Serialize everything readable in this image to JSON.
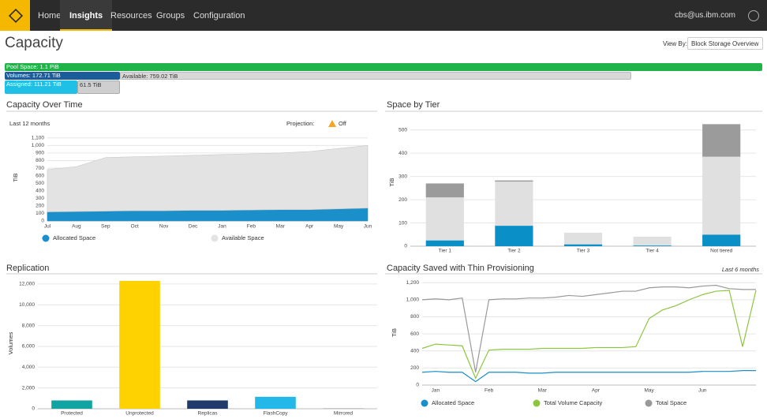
{
  "nav": {
    "items": [
      "Home",
      "Insights",
      "Resources",
      "Groups",
      "Configuration"
    ],
    "user": "cbs@us.ibm.com"
  },
  "page": {
    "title": "Capacity",
    "view_by_label": "View By:",
    "view_by_value": "Block Storage Overview"
  },
  "capacity_bars": {
    "pool": "Pool Space: 1.1 PiB",
    "volumes": "Volumes: 172.71 TiB",
    "available": "Available: 759.02 TiB",
    "assigned": "Assigned: 111.21 TiB",
    "unassigned": "61.5 TiB"
  },
  "chart_data": [
    {
      "type": "area",
      "title": "Capacity Over Time",
      "subtitle": "Last 12 months",
      "projection_label": "Projection:",
      "projection_value": "Off",
      "y_label": "TiB",
      "categories": [
        "Jul",
        "Aug",
        "Sep",
        "Oct",
        "Nov",
        "Dec",
        "Jan",
        "Feb",
        "Mar",
        "Apr",
        "May",
        "Jun"
      ],
      "series": [
        {
          "name": "Allocated Space",
          "color": "#1a8fc9",
          "values": [
            120,
            125,
            130,
            135,
            135,
            140,
            140,
            145,
            150,
            150,
            160,
            170
          ]
        },
        {
          "name": "Available Space",
          "color": "#e3e3e3",
          "values": [
            560,
            595,
            710,
            715,
            725,
            730,
            740,
            745,
            750,
            770,
            800,
            830
          ]
        }
      ],
      "stacked": true,
      "ylim": [
        0,
        1150
      ],
      "yticks": [
        0,
        100,
        200,
        300,
        400,
        500,
        600,
        700,
        800,
        900,
        {
          "value": 1000,
          "label": "1,000"
        },
        {
          "value": 1100,
          "label": "1,100"
        }
      ],
      "grid": true
    },
    {
      "type": "bar",
      "title": "Space by Tier",
      "y_label": "TiB",
      "stacked": true,
      "categories": [
        "Tier 1",
        "Tier 2",
        "Tier 3",
        "Tier 4",
        "Not tiered"
      ],
      "series": [
        {
          "color": "#0a8fc7",
          "values": [
            25,
            88,
            8,
            3,
            50
          ]
        },
        {
          "color": "#e0e0e0",
          "values": [
            185,
            190,
            50,
            38,
            335
          ]
        },
        {
          "color": "#9b9b9b",
          "values": [
            60,
            5,
            0,
            0,
            140
          ]
        }
      ],
      "ylim": [
        0,
        550
      ],
      "yticks": [
        0,
        100,
        200,
        300,
        400,
        500
      ],
      "grid": true
    },
    {
      "type": "bar",
      "title": "Replication",
      "y_label": "Volumes",
      "categories": [
        "Protected",
        "Unprotected",
        "Replicas",
        "FlashCopy",
        "Mirrored"
      ],
      "values": [
        800,
        12300,
        800,
        1150,
        50
      ],
      "colors": [
        "#12a3a3",
        "#fed100",
        "#1f3a6b",
        "#24b8e8",
        "#aaaaaa"
      ],
      "ylim": [
        0,
        12600
      ],
      "yticks": [
        0,
        {
          "value": 2000,
          "label": "2,000"
        },
        {
          "value": 4000,
          "label": "4,000"
        },
        {
          "value": 6000,
          "label": "6,000"
        },
        {
          "value": 8000,
          "label": "8,000"
        },
        {
          "value": 10000,
          "label": "10,000"
        },
        {
          "value": 12000,
          "label": "12,000"
        }
      ],
      "grid": true
    },
    {
      "type": "line",
      "title": "Capacity Saved with Thin Provisioning",
      "subtitle": "Last 6 months",
      "y_label": "TiB",
      "categories": [
        null,
        "Jan",
        null,
        null,
        null,
        "Feb",
        null,
        null,
        null,
        "Mar",
        null,
        null,
        null,
        "Apr",
        null,
        null,
        null,
        "May",
        null,
        null,
        null,
        "Jun",
        null,
        null,
        null,
        null
      ],
      "series": [
        {
          "name": "Allocated Space",
          "color": "#1a8fc9",
          "values": [
            150,
            160,
            150,
            150,
            40,
            150,
            150,
            150,
            140,
            140,
            150,
            150,
            150,
            150,
            150,
            150,
            150,
            150,
            150,
            150,
            150,
            160,
            160,
            160,
            170,
            170
          ]
        },
        {
          "name": "Total Volume Capacity",
          "color": "#8cc63f",
          "values": [
            430,
            480,
            470,
            460,
            80,
            410,
            420,
            420,
            420,
            430,
            430,
            430,
            430,
            440,
            440,
            440,
            450,
            780,
            880,
            930,
            1000,
            1060,
            1100,
            1110,
            450,
            1110
          ]
        },
        {
          "name": "Total Space",
          "color": "#999999",
          "values": [
            1000,
            1010,
            1000,
            1020,
            150,
            1000,
            1010,
            1010,
            1020,
            1020,
            1030,
            1050,
            1040,
            1060,
            1080,
            1100,
            1100,
            1140,
            1150,
            1150,
            1140,
            1160,
            1170,
            1130,
            1120,
            1120
          ]
        }
      ],
      "ylim": [
        0,
        1230
      ],
      "yticks": [
        0,
        200,
        400,
        600,
        800,
        {
          "value": 1000,
          "label": "1,000"
        },
        {
          "value": 1200,
          "label": "1,200"
        }
      ],
      "grid": true
    }
  ]
}
